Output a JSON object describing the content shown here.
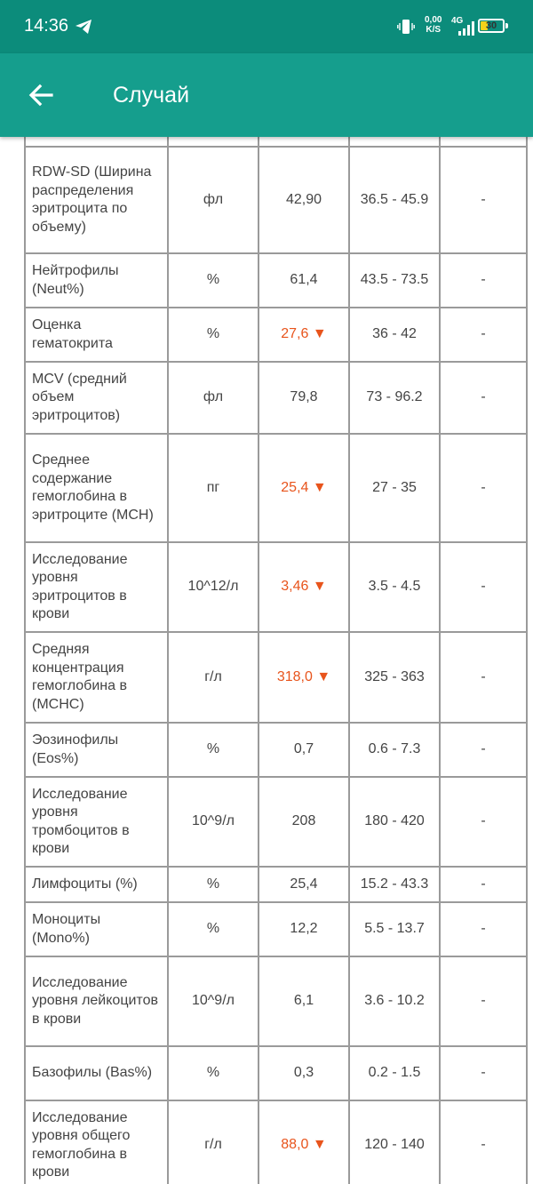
{
  "status": {
    "time": "14:36",
    "net_speed_value": "0,00",
    "net_speed_unit": "K/S",
    "network": "4G",
    "battery": "30"
  },
  "appbar": {
    "title": "Случай",
    "back_icon": "arrow-left-icon"
  },
  "colors": {
    "statusbar": "#0c8c7b",
    "appbar": "#159e8d",
    "abnormal": "#e8541c",
    "grid": "#9a9a9a"
  },
  "rows": [
    {
      "name": "RDW-SD (Ширина распределения эритроцита по объему)",
      "unit": "фл",
      "value": "42,90",
      "ref": "36.5 - 45.9",
      "note": "-",
      "low": false
    },
    {
      "name": "Нейтрофилы (Neut%)",
      "unit": "%",
      "value": "61,4",
      "ref": "43.5 - 73.5",
      "note": "-",
      "low": false
    },
    {
      "name": "Оценка гематокрита",
      "unit": "%",
      "value": "27,6 ▼",
      "ref": "36 - 42",
      "note": "-",
      "low": true
    },
    {
      "name": "MCV (средний объем эритроцитов)",
      "unit": "фл",
      "value": "79,8",
      "ref": "73 - 96.2",
      "note": "-",
      "low": false
    },
    {
      "name": "Среднее содержание гемоглобина в эритроците (MCH)",
      "unit": "пг",
      "value": "25,4 ▼",
      "ref": "27 - 35",
      "note": "-",
      "low": true
    },
    {
      "name": "Исследование уровня эритроцитов в крови",
      "unit": "10^12/л",
      "value": "3,46 ▼",
      "ref": "3.5 - 4.5",
      "note": "-",
      "low": true
    },
    {
      "name": "Средняя концентрация гемоглобина в (MCHC)",
      "unit": "г/л",
      "value": "318,0 ▼",
      "ref": "325 - 363",
      "note": "-",
      "low": true
    },
    {
      "name": "Эозинофилы (Eos%)",
      "unit": "%",
      "value": "0,7",
      "ref": "0.6 - 7.3",
      "note": "-",
      "low": false
    },
    {
      "name": "Исследование уровня тромбоцитов в крови",
      "unit": "10^9/л",
      "value": "208",
      "ref": "180 - 420",
      "note": "-",
      "low": false
    },
    {
      "name": "Лимфоциты (%)",
      "unit": "%",
      "value": "25,4",
      "ref": "15.2 - 43.3",
      "note": "-",
      "low": false
    },
    {
      "name": "Моноциты (Mono%)",
      "unit": "%",
      "value": "12,2",
      "ref": "5.5 - 13.7",
      "note": "-",
      "low": false
    },
    {
      "name": "Исследование уровня лейкоцитов в крови",
      "unit": "10^9/л",
      "value": "6,1",
      "ref": "3.6 - 10.2",
      "note": "-",
      "low": false
    },
    {
      "name": "Базофилы (Bas%)",
      "unit": "%",
      "value": "0,3",
      "ref": "0.2 - 1.5",
      "note": "-",
      "low": false
    },
    {
      "name": "Исследование уровня общего гемоглобина в крови",
      "unit": "г/л",
      "value": "88,0 ▼",
      "ref": "120 - 140",
      "note": "-",
      "low": true
    }
  ]
}
